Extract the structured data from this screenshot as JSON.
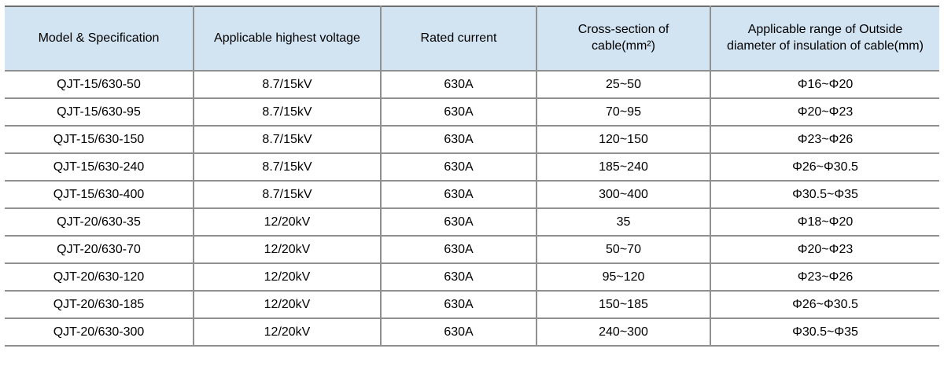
{
  "table": {
    "columns": [
      "Model & Specification",
      "Applicable highest voltage",
      "Rated current",
      "Cross-section of\ncable(mm²)",
      "Applicable range of Outside\ndiameter of insulation of cable(mm)"
    ],
    "rows": [
      [
        "QJT-15/630-50",
        "8.7/15kV",
        "630A",
        "25~50",
        "Φ16~Φ20"
      ],
      [
        "QJT-15/630-95",
        "8.7/15kV",
        "630A",
        "70~95",
        "Φ20~Φ23"
      ],
      [
        "QJT-15/630-150",
        "8.7/15kV",
        "630A",
        "120~150",
        "Φ23~Φ26"
      ],
      [
        "QJT-15/630-240",
        "8.7/15kV",
        "630A",
        "185~240",
        "Φ26~Φ30.5"
      ],
      [
        "QJT-15/630-400",
        "8.7/15kV",
        "630A",
        "300~400",
        "Φ30.5~Φ35"
      ],
      [
        "QJT-20/630-35",
        "12/20kV",
        "630A",
        "35",
        "Φ18~Φ20"
      ],
      [
        "QJT-20/630-70",
        "12/20kV",
        "630A",
        "50~70",
        "Φ20~Φ23"
      ],
      [
        "QJT-20/630-120",
        "12/20kV",
        "630A",
        "95~120",
        "Φ23~Φ26"
      ],
      [
        "QJT-20/630-185",
        "12/20kV",
        "630A",
        "150~185",
        "Φ26~Φ30.5"
      ],
      [
        "QJT-20/630-300",
        "12/20kV",
        "630A",
        "240~300",
        "Φ30.5~Φ35"
      ]
    ],
    "colors": {
      "header_bg": "#d2e3f2",
      "grid_line": "#909090",
      "top_border": "#6f6f6f",
      "text": "#000000"
    }
  }
}
